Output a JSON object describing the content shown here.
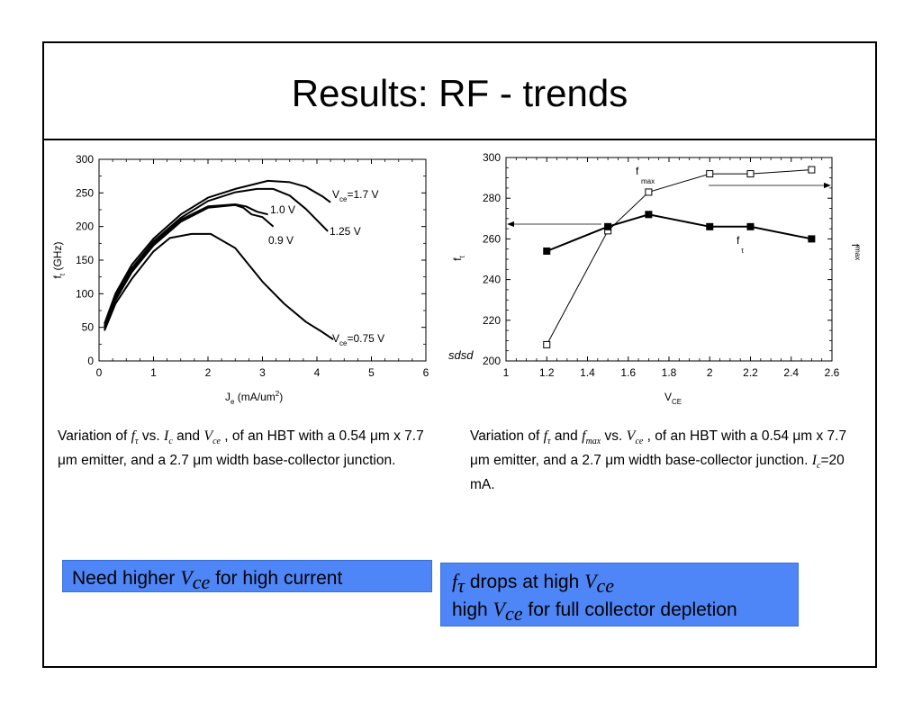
{
  "slide": {
    "title": "Results: RF - trends"
  },
  "chart_data": [
    {
      "type": "line",
      "title": "",
      "xlabel_main": "J",
      "xlabel_sub": "e",
      "xlabel_rest": " (mA/um",
      "xlabel_sup": "2",
      "xlabel_end": ")",
      "ylabel_main": "f",
      "ylabel_sub": "t",
      "ylabel_rest": " (GHz)",
      "xlim": [
        0,
        6
      ],
      "ylim": [
        0,
        300
      ],
      "xticks": [
        "0",
        "1",
        "2",
        "3",
        "4",
        "5",
        "6"
      ],
      "yticks": [
        "0",
        "50",
        "100",
        "150",
        "200",
        "250",
        "300"
      ],
      "series": [
        {
          "name": "Vce=1.7 V",
          "x": [
            0.1,
            0.3,
            0.6,
            1.0,
            1.5,
            2.0,
            2.5,
            3.1,
            3.5,
            3.8,
            4.1,
            4.25
          ],
          "y": [
            55,
            100,
            143,
            182,
            218,
            243,
            256,
            268,
            266,
            259,
            245,
            236
          ]
        },
        {
          "name": "1.25 V",
          "x": [
            0.1,
            0.3,
            0.6,
            1.0,
            1.5,
            2.0,
            2.5,
            2.9,
            3.2,
            3.5,
            3.8,
            4.2
          ],
          "y": [
            52,
            95,
            138,
            178,
            213,
            238,
            251,
            256,
            256,
            246,
            226,
            193
          ]
        },
        {
          "name": "1.0 V",
          "x": [
            0.1,
            0.3,
            0.6,
            1.0,
            1.5,
            2.0,
            2.5,
            2.7,
            2.9,
            3.1
          ],
          "y": [
            50,
            92,
            135,
            175,
            210,
            230,
            233,
            230,
            222,
            218
          ]
        },
        {
          "name": "0.9 V",
          "x": [
            0.1,
            0.3,
            0.6,
            1.0,
            1.5,
            2.0,
            2.5,
            2.65,
            2.8,
            3.0,
            3.2
          ],
          "y": [
            48,
            90,
            132,
            172,
            207,
            228,
            232,
            228,
            218,
            214,
            200
          ]
        },
        {
          "name": "Vce=0.75 V",
          "x": [
            0.1,
            0.3,
            0.6,
            1.0,
            1.3,
            1.7,
            2.05,
            2.5,
            3.0,
            3.4,
            3.8,
            4.1,
            4.3
          ],
          "y": [
            45,
            85,
            122,
            163,
            183,
            189,
            189,
            168,
            118,
            85,
            58,
            43,
            32
          ]
        }
      ],
      "curve_labels": [
        {
          "main": "V",
          "sub": "ce",
          "rest": "=1.7 V"
        },
        {
          "main": "1.25 V"
        },
        {
          "main": "1.0 V"
        },
        {
          "main": "0.9 V"
        },
        {
          "main": "V",
          "sub": "ce",
          "rest": "=0.75 V"
        }
      ]
    },
    {
      "type": "line",
      "title": "",
      "xlabel_main": "V",
      "xlabel_sub": "CE",
      "ylabel_left_main": "f",
      "ylabel_left_sub": "t",
      "ylabel_right_main": "f",
      "ylabel_right_sub": "max",
      "stray_text": "sdsd",
      "xlim": [
        1,
        2.6
      ],
      "ylim": [
        200,
        300
      ],
      "xticks": [
        "1",
        "1.2",
        "1.4",
        "1.6",
        "1.8",
        "2",
        "2.2",
        "2.4",
        "2.6"
      ],
      "yticks": [
        "200",
        "220",
        "240",
        "260",
        "280",
        "300"
      ],
      "series": [
        {
          "name": "fmax",
          "marker": "open-square",
          "x": [
            1.2,
            1.5,
            1.7,
            2.0,
            2.2,
            2.5
          ],
          "y": [
            208,
            264,
            283,
            292,
            292,
            294
          ]
        },
        {
          "name": "fτ",
          "marker": "filled-square",
          "x": [
            1.2,
            1.5,
            1.7,
            2.0,
            2.2,
            2.5
          ],
          "y": [
            254,
            266,
            272,
            266,
            266,
            260
          ]
        }
      ],
      "series_labels": [
        {
          "main": "f",
          "sub": "max"
        },
        {
          "main": "f",
          "sub": "τ"
        }
      ]
    }
  ],
  "captions": {
    "left": {
      "p1": "Variation of ",
      "ft_main": "f",
      "ft_sub": "τ",
      "p2": " vs. ",
      "ic_main": "I",
      "ic_sub": "c",
      "p3": "   and ",
      "vce_main": "V",
      "vce_sub": "ce",
      "p4": " , of an HBT with a 0.54 μm x 7.7 μm emitter, and a 2.7 μm width base-collector junction."
    },
    "right": {
      "p1": "Variation of ",
      "ft_main": "f",
      "ft_sub": "τ",
      "p2": " and ",
      "fmax_main": "f",
      "fmax_sub": "max",
      "p3": " vs. ",
      "vce_main": "V",
      "vce_sub": "ce",
      "p4": " , of an HBT with a 0.54 μm x 7.7 μm emitter, and a 2.7 μm width base-collector junction. ",
      "ic_main": "I",
      "ic_sub": "c",
      "p5": "=20 mA."
    }
  },
  "callouts": {
    "left": {
      "p1": "Need higher ",
      "v_main": "V",
      "v_sub": "ce",
      "p2": " for high current"
    },
    "right": {
      "f_main": "f",
      "f_sub": "τ",
      "l1_text": " drops at high ",
      "v1_main": "V",
      "v1_sub": "ce",
      "l2_p1": "high ",
      "v2_main": "V",
      "v2_sub": "ce",
      "l2_p2": " for full collector depletion"
    }
  }
}
